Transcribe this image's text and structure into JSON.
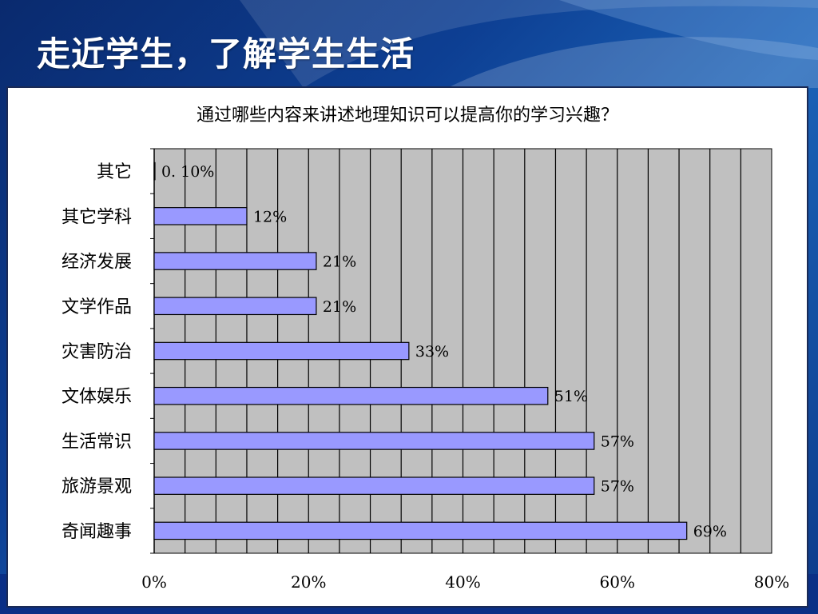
{
  "slide": {
    "title": "走近学生，了解学生生活"
  },
  "colors": {
    "background": "#0d3f93",
    "plot_area": "#c0c0c0",
    "bar_fill": "#9999ff",
    "bar_stroke": "#000000"
  },
  "chart_data": {
    "type": "bar",
    "orientation": "horizontal",
    "title": "通过哪些内容来讲述地理知识可以提高你的学习兴趣？",
    "categories": [
      "其它",
      "其它学科",
      "经济发展",
      "文学作品",
      "灾害防治",
      "文体娱乐",
      "生活常识",
      "旅游景观",
      "奇闻趣事"
    ],
    "values": [
      0.1,
      12,
      21,
      21,
      33,
      51,
      57,
      57,
      69
    ],
    "data_labels": [
      "0. 10%",
      "12%",
      "21%",
      "21%",
      "33%",
      "51%",
      "57%",
      "57%",
      "69%"
    ],
    "x_ticks": [
      "0%",
      "20%",
      "40%",
      "60%",
      "80%"
    ],
    "xlim": [
      0,
      80
    ],
    "grid": true,
    "legend": "none"
  }
}
